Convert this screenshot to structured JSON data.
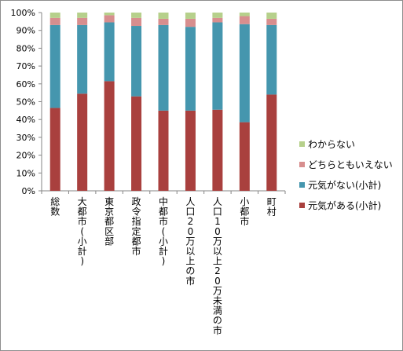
{
  "chart_data": {
    "type": "bar",
    "stacked": true,
    "ylim": [
      0,
      100
    ],
    "yticks": [
      "0%",
      "10%",
      "20%",
      "30%",
      "40%",
      "50%",
      "60%",
      "70%",
      "80%",
      "90%",
      "100%"
    ],
    "grid": false,
    "legend_position": "right",
    "categories": [
      "総数",
      "大都市(小計)",
      "東京都区部",
      "政令指定都市",
      "中都市(小計)",
      "人口20万以上の市",
      "人口10万以上20万未満の市",
      "小都市",
      "町村"
    ],
    "series": [
      {
        "name": "元気がある(小計)",
        "color": "#a9403e",
        "values": [
          46.5,
          54.5,
          61.5,
          53.0,
          45.0,
          45.0,
          45.5,
          38.5,
          54.0
        ]
      },
      {
        "name": "元気がない(小計)",
        "color": "#4596ae",
        "values": [
          46.5,
          38.5,
          33.0,
          39.5,
          48.0,
          47.0,
          49.0,
          55.0,
          39.0
        ]
      },
      {
        "name": "どちらともいえない",
        "color": "#d78e8e",
        "values": [
          4.0,
          4.0,
          4.0,
          4.5,
          3.5,
          4.5,
          2.5,
          4.5,
          3.5
        ]
      },
      {
        "name": "わからない",
        "color": "#b6d08b",
        "values": [
          3.0,
          3.0,
          1.5,
          3.0,
          3.5,
          3.5,
          3.0,
          2.0,
          3.5
        ]
      }
    ]
  }
}
